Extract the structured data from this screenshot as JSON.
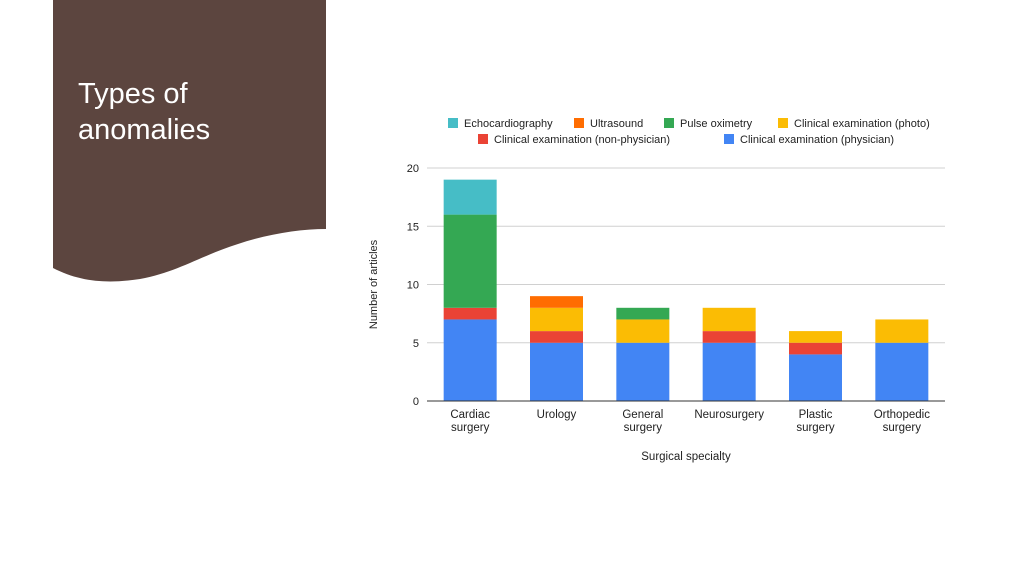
{
  "slide": {
    "title_lines": [
      "Types of",
      "anomalies"
    ],
    "panel_color": "#5c453f"
  },
  "chart_data": {
    "type": "bar",
    "stacked": true,
    "title": "",
    "xlabel": "Surgical specialty",
    "ylabel": "Number of articles",
    "ylim": [
      0,
      20
    ],
    "yticks": [
      0,
      5,
      10,
      15,
      20
    ],
    "grid": true,
    "legend_position": "top",
    "categories": [
      [
        "Cardiac",
        "surgery"
      ],
      [
        "Urology"
      ],
      [
        "General",
        "surgery"
      ],
      [
        "Neurosurgery"
      ],
      [
        "Plastic",
        "surgery"
      ],
      [
        "Orthopedic",
        "surgery"
      ]
    ],
    "series": [
      {
        "name": "Clinical examination (physician)",
        "key": "clin-phys",
        "color": "#4285f4",
        "values": [
          7,
          5,
          5,
          5,
          4,
          5
        ]
      },
      {
        "name": "Clinical examination (non-physician)",
        "key": "clin-nonphys",
        "color": "#ea4335",
        "values": [
          1,
          1,
          0,
          1,
          1,
          0
        ]
      },
      {
        "name": "Clinical examination (photo)",
        "key": "clin-photo",
        "color": "#fbbc04",
        "values": [
          0,
          2,
          2,
          2,
          1,
          2
        ]
      },
      {
        "name": "Pulse oximetry",
        "key": "pulse-ox",
        "color": "#34a853",
        "values": [
          8,
          0,
          1,
          0,
          0,
          0
        ]
      },
      {
        "name": "Ultrasound",
        "key": "ultrasound",
        "color": "#ff6d01",
        "values": [
          0,
          1,
          0,
          0,
          0,
          0
        ]
      },
      {
        "name": "Echocardiography",
        "key": "echo",
        "color": "#46bdc6",
        "values": [
          3,
          0,
          0,
          0,
          0,
          0
        ]
      }
    ],
    "legend_rows": [
      [
        "Echocardiography",
        "Ultrasound",
        "Pulse oximetry",
        "Clinical examination (photo)"
      ],
      [
        "Clinical examination (non-physician)",
        "Clinical examination (physician)"
      ]
    ]
  }
}
